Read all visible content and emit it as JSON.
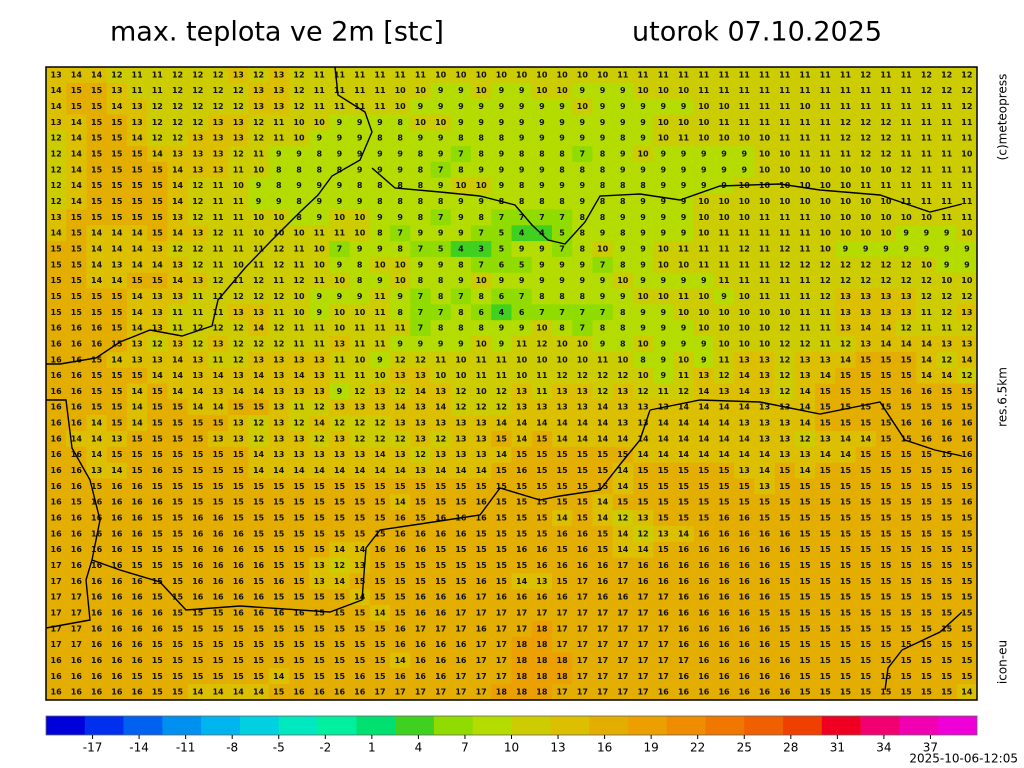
{
  "header": {
    "title": "max. teplota ve 2m [stc]",
    "date": "utorok 07.10.2025"
  },
  "side": {
    "copyright": "(c)meteopress",
    "resolution": "res.6.5km",
    "model": "icon-eu"
  },
  "footer": {
    "timestamp": "2025-10-06-12:05"
  },
  "colorbar": {
    "lim": [
      -20,
      40
    ],
    "ticks": [
      -17,
      -14,
      -11,
      -8,
      -5,
      -2,
      1,
      4,
      7,
      10,
      13,
      16,
      19,
      22,
      25,
      28,
      31,
      34,
      37
    ],
    "colors": [
      "#0000dc",
      "#0030ee",
      "#0060f0",
      "#0090f0",
      "#00b4f0",
      "#00d0e0",
      "#00e8c0",
      "#00f0a0",
      "#00e070",
      "#40d020",
      "#90dc00",
      "#b4dc00",
      "#cccc00",
      "#dcc000",
      "#e4ae00",
      "#eca000",
      "#f08c00",
      "#f07800",
      "#f06000",
      "#f04000",
      "#f00020",
      "#f00070",
      "#f000b0",
      "#f000d8"
    ]
  },
  "grid": [
    [
      13,
      14,
      14,
      12,
      11,
      11,
      12,
      12,
      12,
      13,
      12,
      13,
      12,
      11,
      11,
      11,
      11,
      11,
      11,
      10,
      10,
      10,
      10,
      10,
      10,
      10,
      10,
      10,
      11,
      11,
      11,
      11,
      11,
      11,
      11,
      11,
      11,
      11,
      11,
      11,
      12,
      11,
      11,
      12,
      12,
      12
    ],
    [
      14,
      15,
      15,
      13,
      11,
      11,
      12,
      12,
      12,
      12,
      13,
      13,
      12,
      11,
      11,
      11,
      11,
      10,
      10,
      9,
      9,
      10,
      9,
      9,
      10,
      10,
      9,
      9,
      9,
      10,
      10,
      10,
      11,
      11,
      11,
      11,
      11,
      11,
      11,
      11,
      11,
      11,
      11,
      12,
      12,
      12
    ],
    [
      14,
      15,
      15,
      14,
      13,
      12,
      12,
      12,
      12,
      12,
      13,
      13,
      12,
      11,
      11,
      11,
      11,
      10,
      9,
      9,
      9,
      9,
      9,
      9,
      9,
      9,
      10,
      9,
      9,
      9,
      9,
      9,
      10,
      10,
      11,
      11,
      11,
      10,
      11,
      11,
      11,
      11,
      11,
      11,
      11,
      12
    ],
    [
      13,
      14,
      15,
      15,
      13,
      12,
      12,
      12,
      13,
      13,
      12,
      11,
      10,
      10,
      9,
      9,
      9,
      8,
      10,
      10,
      9,
      9,
      9,
      9,
      9,
      9,
      9,
      9,
      9,
      9,
      10,
      10,
      10,
      11,
      11,
      11,
      11,
      11,
      11,
      12,
      12,
      12,
      11,
      11,
      11,
      11
    ],
    [
      12,
      14,
      15,
      15,
      14,
      12,
      12,
      13,
      13,
      13,
      12,
      11,
      10,
      9,
      9,
      9,
      8,
      8,
      9,
      9,
      8,
      8,
      8,
      9,
      9,
      9,
      9,
      9,
      8,
      9,
      10,
      11,
      10,
      10,
      10,
      10,
      11,
      11,
      11,
      12,
      12,
      12,
      11,
      11,
      11,
      11
    ],
    [
      12,
      14,
      15,
      15,
      15,
      14,
      13,
      13,
      13,
      12,
      11,
      9,
      9,
      8,
      9,
      9,
      9,
      9,
      8,
      9,
      7,
      8,
      9,
      8,
      8,
      8,
      7,
      8,
      9,
      10,
      9,
      9,
      9,
      9,
      9,
      10,
      10,
      11,
      11,
      11,
      12,
      12,
      11,
      11,
      11,
      10
    ],
    [
      12,
      14,
      15,
      15,
      15,
      15,
      14,
      13,
      13,
      11,
      10,
      8,
      8,
      8,
      8,
      9,
      9,
      9,
      8,
      7,
      8,
      9,
      9,
      9,
      9,
      8,
      8,
      8,
      9,
      9,
      9,
      9,
      9,
      9,
      9,
      10,
      10,
      10,
      10,
      10,
      10,
      10,
      12,
      11,
      11,
      11
    ],
    [
      12,
      14,
      15,
      15,
      15,
      15,
      14,
      12,
      11,
      10,
      9,
      8,
      9,
      9,
      9,
      8,
      8,
      8,
      8,
      9,
      10,
      10,
      9,
      8,
      9,
      9,
      9,
      8,
      8,
      8,
      9,
      9,
      9,
      9,
      10,
      10,
      10,
      10,
      10,
      10,
      11,
      11,
      11,
      11,
      11,
      11
    ],
    [
      12,
      14,
      15,
      15,
      15,
      15,
      14,
      12,
      11,
      11,
      9,
      9,
      8,
      9,
      9,
      9,
      8,
      8,
      8,
      8,
      9,
      9,
      8,
      8,
      8,
      8,
      9,
      8,
      8,
      9,
      9,
      9,
      10,
      10,
      10,
      10,
      10,
      10,
      10,
      10,
      10,
      10,
      11,
      11,
      11,
      11
    ],
    [
      13,
      15,
      15,
      15,
      15,
      15,
      13,
      12,
      11,
      11,
      10,
      10,
      8,
      9,
      10,
      10,
      9,
      9,
      8,
      7,
      9,
      8,
      7,
      7,
      7,
      7,
      8,
      8,
      9,
      9,
      9,
      9,
      10,
      10,
      10,
      11,
      11,
      11,
      10,
      10,
      10,
      10,
      10,
      10,
      11,
      11
    ],
    [
      14,
      15,
      14,
      14,
      14,
      15,
      14,
      13,
      12,
      11,
      10,
      10,
      10,
      11,
      11,
      10,
      8,
      7,
      9,
      9,
      9,
      7,
      5,
      4,
      4,
      5,
      8,
      9,
      8,
      9,
      9,
      9,
      10,
      11,
      11,
      11,
      11,
      11,
      10,
      10,
      10,
      10,
      9,
      9,
      9,
      10
    ],
    [
      15,
      15,
      14,
      14,
      14,
      13,
      12,
      12,
      11,
      11,
      11,
      12,
      11,
      10,
      7,
      9,
      9,
      8,
      7,
      5,
      4,
      3,
      5,
      9,
      9,
      7,
      8,
      10,
      9,
      9,
      10,
      11,
      11,
      11,
      12,
      11,
      12,
      11,
      10,
      9,
      9,
      9,
      9,
      9,
      9,
      9
    ],
    [
      15,
      15,
      14,
      13,
      14,
      14,
      13,
      12,
      11,
      10,
      11,
      12,
      11,
      10,
      9,
      8,
      10,
      10,
      9,
      9,
      8,
      7,
      6,
      5,
      9,
      9,
      9,
      7,
      8,
      9,
      10,
      10,
      11,
      11,
      11,
      11,
      12,
      12,
      12,
      12,
      12,
      12,
      12,
      10,
      9,
      9
    ],
    [
      15,
      15,
      14,
      14,
      15,
      15,
      14,
      13,
      12,
      11,
      12,
      11,
      12,
      11,
      10,
      8,
      9,
      10,
      8,
      8,
      9,
      10,
      9,
      9,
      9,
      9,
      9,
      9,
      10,
      9,
      9,
      9,
      9,
      11,
      11,
      11,
      11,
      11,
      12,
      12,
      12,
      12,
      12,
      12,
      10,
      10
    ],
    [
      15,
      15,
      15,
      15,
      14,
      13,
      13,
      11,
      11,
      12,
      12,
      12,
      10,
      9,
      9,
      9,
      11,
      9,
      7,
      8,
      7,
      8,
      6,
      7,
      8,
      8,
      8,
      9,
      9,
      10,
      10,
      11,
      10,
      9,
      10,
      11,
      11,
      11,
      12,
      13,
      13,
      13,
      13,
      12,
      12,
      12
    ],
    [
      15,
      15,
      15,
      15,
      14,
      13,
      11,
      11,
      11,
      13,
      13,
      11,
      10,
      9,
      10,
      10,
      11,
      8,
      7,
      7,
      8,
      6,
      4,
      6,
      7,
      7,
      7,
      7,
      8,
      9,
      9,
      10,
      10,
      10,
      10,
      10,
      10,
      11,
      11,
      13,
      13,
      13,
      13,
      11,
      12,
      13
    ],
    [
      16,
      16,
      16,
      15,
      14,
      13,
      11,
      12,
      12,
      12,
      14,
      12,
      11,
      11,
      10,
      11,
      11,
      11,
      7,
      8,
      8,
      8,
      9,
      9,
      10,
      8,
      7,
      8,
      8,
      9,
      9,
      9,
      10,
      10,
      10,
      10,
      12,
      11,
      11,
      13,
      14,
      14,
      12,
      11,
      11,
      12
    ],
    [
      16,
      16,
      16,
      15,
      13,
      12,
      13,
      12,
      13,
      12,
      12,
      12,
      11,
      11,
      13,
      11,
      11,
      9,
      9,
      9,
      9,
      10,
      9,
      11,
      12,
      10,
      10,
      9,
      8,
      10,
      9,
      9,
      9,
      10,
      10,
      10,
      12,
      12,
      11,
      12,
      13,
      14,
      14,
      14,
      13,
      13
    ],
    [
      16,
      16,
      15,
      14,
      13,
      13,
      14,
      13,
      11,
      12,
      13,
      13,
      13,
      13,
      11,
      10,
      9,
      12,
      12,
      11,
      10,
      11,
      11,
      10,
      10,
      10,
      10,
      11,
      10,
      8,
      9,
      10,
      9,
      11,
      13,
      13,
      12,
      13,
      13,
      14,
      15,
      15,
      15,
      14,
      12,
      14
    ],
    [
      16,
      16,
      15,
      15,
      15,
      14,
      14,
      13,
      14,
      13,
      14,
      13,
      14,
      13,
      11,
      11,
      10,
      13,
      13,
      10,
      10,
      11,
      11,
      10,
      11,
      12,
      12,
      12,
      12,
      10,
      9,
      11,
      13,
      12,
      14,
      13,
      12,
      13,
      14,
      15,
      15,
      15,
      15,
      14,
      14,
      12
    ],
    [
      16,
      16,
      15,
      15,
      14,
      15,
      14,
      14,
      13,
      14,
      14,
      13,
      13,
      13,
      9,
      12,
      13,
      12,
      14,
      13,
      12,
      10,
      12,
      13,
      11,
      13,
      13,
      12,
      13,
      12,
      11,
      12,
      14,
      13,
      14,
      13,
      12,
      14,
      15,
      15,
      15,
      15,
      16,
      16,
      15,
      15
    ],
    [
      16,
      16,
      15,
      15,
      14,
      15,
      15,
      14,
      14,
      15,
      15,
      13,
      11,
      12,
      13,
      13,
      13,
      14,
      13,
      14,
      12,
      12,
      12,
      13,
      13,
      13,
      13,
      14,
      13,
      13,
      13,
      14,
      14,
      14,
      14,
      13,
      13,
      14,
      15,
      15,
      15,
      15,
      15,
      15,
      15,
      15
    ],
    [
      16,
      16,
      14,
      15,
      14,
      15,
      15,
      15,
      15,
      13,
      12,
      13,
      12,
      14,
      12,
      12,
      12,
      13,
      13,
      13,
      13,
      13,
      14,
      14,
      14,
      14,
      14,
      14,
      13,
      13,
      14,
      14,
      14,
      14,
      13,
      13,
      13,
      14,
      15,
      15,
      15,
      15,
      16,
      16,
      16,
      16
    ],
    [
      16,
      14,
      14,
      13,
      15,
      15,
      15,
      15,
      13,
      13,
      12,
      13,
      13,
      12,
      13,
      12,
      12,
      12,
      13,
      12,
      13,
      13,
      15,
      14,
      15,
      14,
      14,
      14,
      14,
      14,
      14,
      14,
      14,
      14,
      14,
      13,
      13,
      12,
      13,
      14,
      14,
      15,
      15,
      16,
      16,
      16
    ],
    [
      16,
      16,
      14,
      15,
      15,
      15,
      15,
      15,
      15,
      15,
      14,
      13,
      13,
      13,
      13,
      13,
      14,
      13,
      12,
      13,
      13,
      13,
      14,
      15,
      15,
      15,
      15,
      15,
      15,
      14,
      14,
      14,
      14,
      14,
      14,
      14,
      13,
      13,
      14,
      14,
      15,
      15,
      15,
      15,
      15,
      16
    ],
    [
      16,
      16,
      13,
      14,
      15,
      16,
      15,
      15,
      15,
      15,
      14,
      14,
      14,
      14,
      14,
      14,
      14,
      14,
      13,
      14,
      14,
      14,
      15,
      16,
      15,
      15,
      15,
      15,
      14,
      15,
      15,
      15,
      15,
      15,
      13,
      14,
      15,
      14,
      15,
      15,
      15,
      15,
      15,
      15,
      15,
      16
    ],
    [
      16,
      16,
      15,
      16,
      16,
      15,
      15,
      15,
      15,
      15,
      15,
      15,
      15,
      15,
      15,
      15,
      15,
      15,
      15,
      15,
      15,
      15,
      15,
      15,
      15,
      15,
      15,
      15,
      14,
      15,
      15,
      15,
      15,
      15,
      15,
      13,
      15,
      15,
      15,
      15,
      15,
      15,
      15,
      15,
      15,
      15
    ],
    [
      16,
      15,
      16,
      16,
      16,
      16,
      15,
      15,
      15,
      15,
      15,
      15,
      15,
      15,
      15,
      15,
      15,
      14,
      15,
      15,
      15,
      16,
      15,
      15,
      15,
      15,
      15,
      14,
      15,
      15,
      15,
      15,
      15,
      15,
      15,
      15,
      15,
      15,
      15,
      15,
      15,
      15,
      15,
      15,
      15,
      16
    ],
    [
      16,
      16,
      16,
      16,
      16,
      15,
      15,
      16,
      16,
      15,
      15,
      15,
      15,
      15,
      15,
      15,
      15,
      16,
      15,
      16,
      16,
      16,
      15,
      15,
      15,
      14,
      15,
      14,
      12,
      13,
      15,
      15,
      15,
      16,
      16,
      15,
      15,
      15,
      15,
      15,
      15,
      15,
      15,
      15,
      15,
      15
    ],
    [
      16,
      16,
      16,
      16,
      16,
      15,
      15,
      16,
      16,
      16,
      15,
      15,
      15,
      15,
      15,
      15,
      15,
      16,
      16,
      16,
      16,
      15,
      15,
      15,
      15,
      16,
      16,
      15,
      14,
      12,
      13,
      14,
      16,
      16,
      16,
      16,
      16,
      15,
      15,
      15,
      15,
      15,
      15,
      15,
      15,
      15
    ],
    [
      16,
      16,
      16,
      16,
      15,
      15,
      15,
      16,
      16,
      16,
      15,
      15,
      15,
      15,
      14,
      14,
      16,
      16,
      16,
      15,
      15,
      15,
      15,
      16,
      16,
      15,
      16,
      15,
      14,
      14,
      15,
      16,
      16,
      16,
      16,
      16,
      16,
      15,
      15,
      15,
      15,
      15,
      15,
      15,
      15,
      15
    ],
    [
      17,
      16,
      16,
      16,
      15,
      15,
      15,
      16,
      16,
      16,
      16,
      15,
      15,
      13,
      12,
      13,
      15,
      15,
      15,
      15,
      15,
      15,
      15,
      15,
      16,
      16,
      16,
      16,
      17,
      16,
      16,
      16,
      16,
      16,
      16,
      16,
      15,
      15,
      15,
      15,
      15,
      15,
      15,
      15,
      15,
      15
    ],
    [
      17,
      16,
      16,
      16,
      16,
      15,
      15,
      16,
      16,
      16,
      15,
      16,
      15,
      13,
      14,
      15,
      15,
      15,
      15,
      15,
      15,
      16,
      15,
      14,
      13,
      15,
      17,
      16,
      17,
      16,
      16,
      16,
      16,
      16,
      16,
      16,
      15,
      15,
      15,
      15,
      15,
      15,
      15,
      15,
      15,
      15
    ],
    [
      17,
      17,
      16,
      16,
      16,
      15,
      15,
      16,
      16,
      16,
      16,
      15,
      15,
      15,
      15,
      14,
      15,
      15,
      16,
      16,
      16,
      17,
      16,
      16,
      16,
      16,
      17,
      16,
      16,
      17,
      17,
      16,
      16,
      16,
      16,
      16,
      15,
      15,
      15,
      15,
      15,
      15,
      15,
      15,
      15,
      15
    ],
    [
      17,
      17,
      16,
      16,
      16,
      16,
      15,
      15,
      15,
      16,
      16,
      16,
      16,
      15,
      15,
      15,
      14,
      15,
      16,
      16,
      17,
      17,
      17,
      17,
      17,
      17,
      17,
      17,
      17,
      17,
      16,
      16,
      16,
      16,
      16,
      15,
      15,
      15,
      15,
      15,
      15,
      15,
      15,
      15,
      15,
      15
    ],
    [
      17,
      17,
      16,
      16,
      16,
      16,
      15,
      15,
      15,
      15,
      15,
      15,
      15,
      15,
      15,
      15,
      15,
      16,
      17,
      17,
      17,
      16,
      17,
      17,
      18,
      17,
      17,
      17,
      17,
      17,
      17,
      16,
      16,
      16,
      16,
      16,
      15,
      15,
      15,
      15,
      15,
      15,
      15,
      15,
      15,
      15
    ],
    [
      17,
      17,
      16,
      16,
      16,
      15,
      15,
      15,
      15,
      15,
      15,
      15,
      15,
      15,
      15,
      15,
      15,
      16,
      16,
      16,
      16,
      17,
      17,
      18,
      18,
      17,
      17,
      17,
      17,
      17,
      17,
      16,
      16,
      16,
      16,
      16,
      15,
      15,
      15,
      15,
      15,
      15,
      15,
      15,
      15,
      15
    ],
    [
      16,
      16,
      16,
      16,
      16,
      15,
      15,
      15,
      15,
      15,
      15,
      15,
      15,
      15,
      15,
      15,
      15,
      14,
      16,
      16,
      16,
      17,
      17,
      18,
      18,
      18,
      17,
      17,
      17,
      17,
      17,
      17,
      16,
      16,
      16,
      16,
      16,
      15,
      15,
      15,
      15,
      15,
      15,
      15,
      15,
      15
    ],
    [
      16,
      16,
      16,
      16,
      15,
      15,
      15,
      15,
      15,
      15,
      15,
      14,
      15,
      15,
      15,
      16,
      15,
      16,
      16,
      16,
      17,
      17,
      17,
      18,
      18,
      18,
      17,
      17,
      17,
      17,
      17,
      16,
      16,
      16,
      16,
      16,
      16,
      15,
      15,
      15,
      15,
      15,
      15,
      15,
      15,
      15
    ],
    [
      16,
      16,
      16,
      16,
      16,
      15,
      15,
      14,
      14,
      14,
      14,
      15,
      16,
      16,
      16,
      16,
      17,
      17,
      17,
      17,
      17,
      17,
      18,
      18,
      18,
      17,
      17,
      17,
      17,
      17,
      16,
      16,
      16,
      16,
      16,
      16,
      16,
      15,
      15,
      15,
      15,
      15,
      15,
      15,
      15,
      14
    ]
  ]
}
